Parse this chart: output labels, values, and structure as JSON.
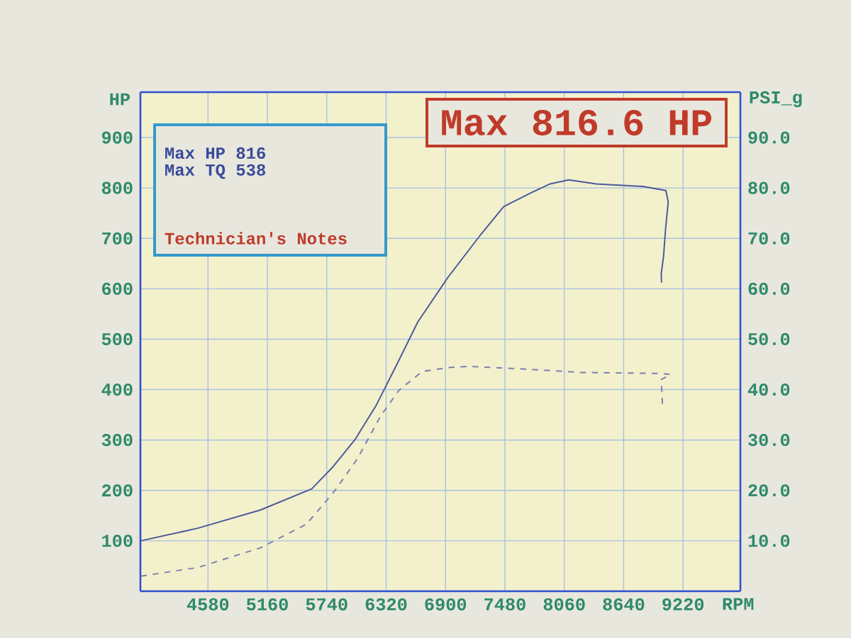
{
  "chart_data": {
    "type": "line",
    "xlabel": "RPM",
    "ylabel": "HP",
    "y2label": "PSI_g",
    "annotations": [
      "Max 816.6 HP",
      "Max HP 816",
      "Max TQ 538",
      "Technician's Notes"
    ],
    "series": [
      {
        "color": "#4a5a9a",
        "x": [
          3924,
          4480,
          5091,
          5593,
          5793,
          6017,
          6221,
          6425,
          6629,
          6832,
          6925,
          7242,
          7469,
          7740,
          7921,
          8103,
          8374,
          8826,
          9053,
          9075,
          9050,
          9030,
          9007,
          9010
        ],
        "values": [
          100,
          125,
          161,
          203,
          245,
          301,
          368,
          450,
          534,
          595,
          623,
          707,
          763,
          791,
          808,
          816,
          808,
          803,
          795,
          772,
          720,
          665,
          630,
          612
        ]
      },
      {
        "color": "#7a80b0",
        "axis": "y2",
        "line_style": "dashed",
        "x": [
          3924,
          4480,
          5091,
          5542,
          5814,
          6040,
          6267,
          6447,
          6674,
          6946,
          7127,
          7649,
          8223,
          9007,
          9098,
          9007,
          9020
        ],
        "values": [
          3.0,
          4.7,
          8.6,
          13.3,
          19.8,
          26.3,
          34.8,
          39.9,
          43.6,
          44.4,
          44.6,
          44.1,
          43.4,
          43.2,
          43.0,
          42.0,
          36.6
        ]
      }
    ],
    "xlim": [
      3920,
      9780
    ],
    "xticks": [
      4580,
      5160,
      5740,
      6320,
      6900,
      7480,
      8060,
      8640,
      9220
    ],
    "ylim": [
      0,
      990
    ],
    "yticks": [
      100,
      200,
      300,
      400,
      500,
      600,
      700,
      800,
      900
    ],
    "y2lim": [
      0,
      99
    ],
    "y2ticks": [
      {
        "value": 10,
        "label": "10.0"
      },
      {
        "value": 20,
        "label": "20.0"
      },
      {
        "value": 30,
        "label": "30.0"
      },
      {
        "value": 40,
        "label": "40.0"
      },
      {
        "value": 50,
        "label": "50.0"
      },
      {
        "value": 60,
        "label": "60.0"
      },
      {
        "value": 70,
        "label": "70.0"
      },
      {
        "value": 80,
        "label": "80.0"
      },
      {
        "value": 90,
        "label": "90.0"
      }
    ],
    "grid": true
  }
}
